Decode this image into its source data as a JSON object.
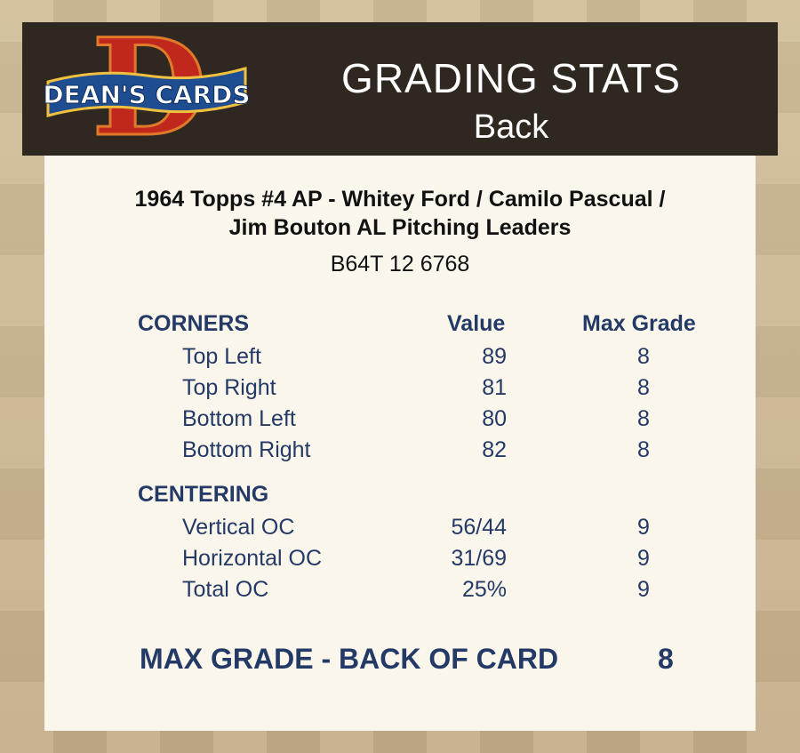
{
  "header": {
    "logo_text": "DEAN'S CARDS",
    "logo_letter": "D",
    "title": "GRADING STATS",
    "subtitle": "Back"
  },
  "card": {
    "title_line1": "1964 Topps #4 AP  -  Whitey Ford / Camilo Pascual /",
    "title_line2": "Jim Bouton AL Pitching Leaders",
    "code": "B64T 12 6768"
  },
  "columns": {
    "value": "Value",
    "max_grade": "Max Grade"
  },
  "corners": {
    "heading": "CORNERS",
    "rows": [
      {
        "label": "Top Left",
        "value": "89",
        "max": "8"
      },
      {
        "label": "Top Right",
        "value": "81",
        "max": "8"
      },
      {
        "label": "Bottom Left",
        "value": "80",
        "max": "8"
      },
      {
        "label": "Bottom Right",
        "value": "82",
        "max": "8"
      }
    ]
  },
  "centering": {
    "heading": "CENTERING",
    "rows": [
      {
        "label": "Vertical OC",
        "value": "56/44",
        "max": "9"
      },
      {
        "label": "Horizontal OC",
        "value": "31/69",
        "max": "9"
      },
      {
        "label": "Total OC",
        "value": "25%",
        "max": "9"
      }
    ]
  },
  "summary": {
    "label": "MAX GRADE - BACK OF CARD",
    "value": "8"
  },
  "colors": {
    "header_bg": "#2f2820",
    "panel_bg": "#fbf6ec",
    "text_navy": "#243a66",
    "logo_red": "#c0281e",
    "logo_blue": "#1e4d92"
  }
}
